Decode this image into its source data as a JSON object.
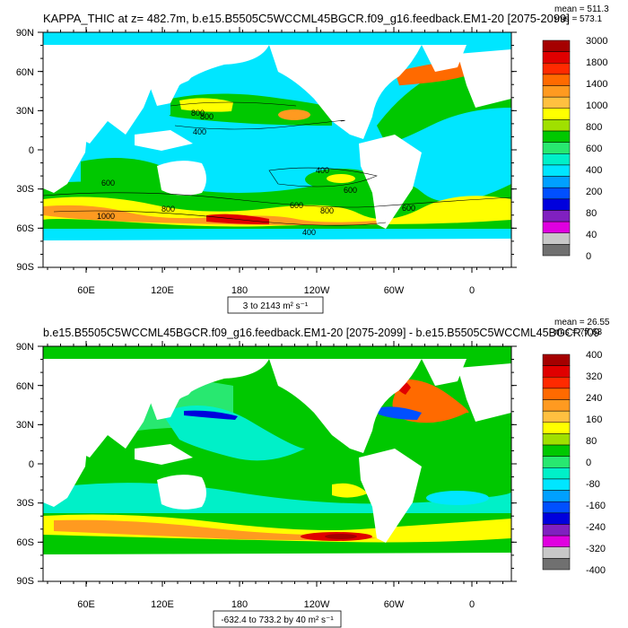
{
  "chart_data": [
    {
      "type": "heatmap",
      "title": "KAPPA_THIC at z= 482.7m, b.e15.B5505C5WCCML45BGCR.f09_g16.feedback.EM1-20 [2075-2099]",
      "stats": {
        "mean": "mean = 511.3",
        "rms": "rms = 573.1"
      },
      "y_ticks": [
        "90N",
        "60N",
        "30N",
        "0",
        "30S",
        "60S",
        "90S"
      ],
      "x_ticks": [
        "60E",
        "120E",
        "180",
        "120W",
        "60W",
        "0"
      ],
      "range_label": "3 to 2143 m² s⁻¹",
      "colorbar": {
        "labels": [
          "3000",
          "1800",
          "1400",
          "1000",
          "800",
          "600",
          "400",
          "200",
          "80",
          "40",
          "0"
        ],
        "colors": [
          "#a50000",
          "#e00000",
          "#ff2a00",
          "#ff6a00",
          "#ff9a20",
          "#ffc040",
          "#ffff00",
          "#a0e000",
          "#00c800",
          "#28e870",
          "#00f0c8",
          "#00e6ff",
          "#00a0ff",
          "#0050ff",
          "#0000dd",
          "#8020c0",
          "#e000e0",
          "#c8c8c8",
          "#707070"
        ]
      },
      "contour_labels": [
        "800",
        "800",
        "400",
        "600",
        "400",
        "600",
        "1000",
        "800",
        "600",
        "800",
        "600",
        "400"
      ]
    },
    {
      "type": "heatmap",
      "title": "b.e15.B5505C5WCCML45BGCR.f09_g16.feedback.EM1-20 [2075-2099] - b.e15.B5505C5WCCML45BGCR.f09",
      "stats": {
        "mean": "mean = 26.55",
        "rms": "rms = 77.63"
      },
      "y_ticks": [
        "90N",
        "60N",
        "30N",
        "0",
        "30S",
        "60S",
        "90S"
      ],
      "x_ticks": [
        "60E",
        "120E",
        "180",
        "120W",
        "60W",
        "0"
      ],
      "range_label": "-632.4 to 733.2 by 40 m² s⁻¹",
      "colorbar": {
        "labels": [
          "400",
          "320",
          "240",
          "160",
          "80",
          "0",
          "-80",
          "-160",
          "-240",
          "-320",
          "-400"
        ],
        "colors": [
          "#a50000",
          "#e00000",
          "#ff2a00",
          "#ff6a00",
          "#ff9a20",
          "#ffc040",
          "#ffff00",
          "#a0e000",
          "#00c800",
          "#28e870",
          "#00f0c8",
          "#00e6ff",
          "#00a0ff",
          "#0050ff",
          "#0000dd",
          "#8020c0",
          "#e000e0",
          "#c8c8c8",
          "#707070"
        ]
      }
    }
  ]
}
